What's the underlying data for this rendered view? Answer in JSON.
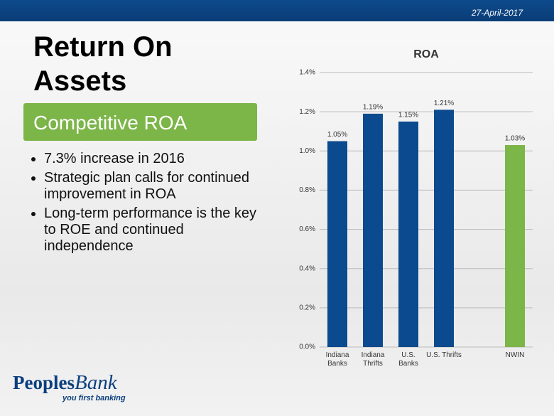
{
  "header": {
    "date": "27-April-2017"
  },
  "title": "Return On Assets",
  "subtitle": "Competitive ROA",
  "bullets": [
    "7.3% increase in 2016",
    "Strategic plan calls for continued improvement in ROA",
    "Long-term performance is the key to ROE and continued independence"
  ],
  "logo": {
    "name": "Peoples",
    "name_script": "Bank",
    "tagline": "you first banking"
  },
  "chart_data": {
    "type": "bar",
    "title": "ROA",
    "categories": [
      "Indiana Banks",
      "Indiana Thrifts",
      "U.S. Banks",
      "U.S. Thrifts",
      null,
      "NWIN"
    ],
    "values": [
      1.05,
      1.19,
      1.15,
      1.21,
      null,
      1.03
    ],
    "value_labels": [
      "1.05%",
      "1.19%",
      "1.15%",
      "1.21%",
      null,
      "1.03%"
    ],
    "colors": [
      "#0b4a8e",
      "#0b4a8e",
      "#0b4a8e",
      "#0b4a8e",
      null,
      "#7cb548"
    ],
    "ylim": [
      0,
      1.4
    ],
    "yticks": [
      {
        "value": 0,
        "label": "0.0%"
      },
      {
        "value": 0.2,
        "label": "0.2%"
      },
      {
        "value": 0.4,
        "label": "0.4%"
      },
      {
        "value": 0.6,
        "label": "0.6%"
      },
      {
        "value": 0.8,
        "label": "0.8%"
      },
      {
        "value": 1.0,
        "label": "1.0%"
      },
      {
        "value": 1.2,
        "label": "1.2%"
      },
      {
        "value": 1.4,
        "label": "1.4%"
      }
    ],
    "grid": true
  }
}
